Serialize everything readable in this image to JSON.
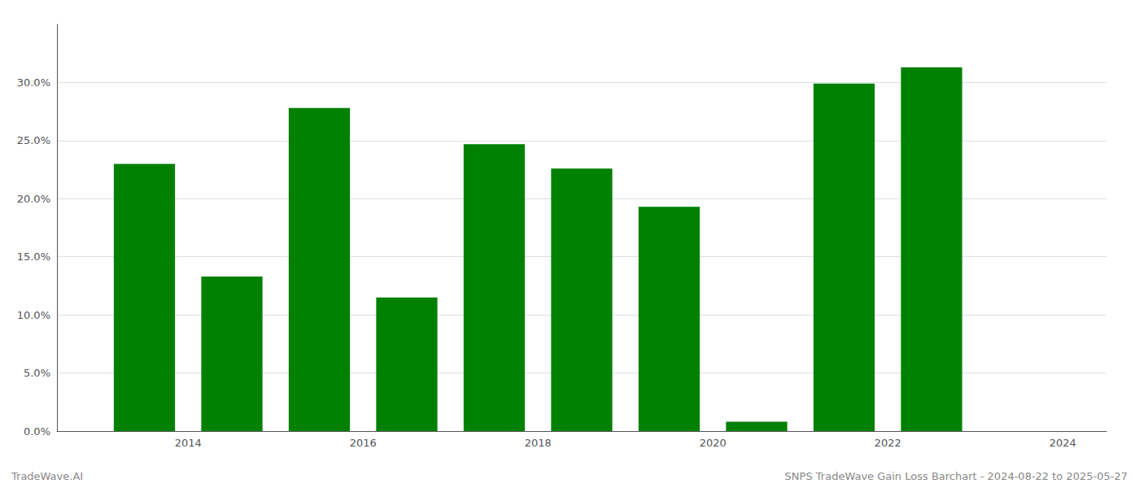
{
  "chart_data": {
    "type": "bar",
    "x": [
      2013.5,
      2014.5,
      2015.5,
      2016.5,
      2017.5,
      2018.5,
      2019.5,
      2020.5,
      2021.5,
      2022.5
    ],
    "values": [
      0.23,
      0.133,
      0.278,
      0.115,
      0.247,
      0.226,
      0.193,
      0.008,
      0.299,
      0.313
    ],
    "color": "#008000",
    "xlim": [
      2012.5,
      2024.5
    ],
    "xticks": [
      2014,
      2016,
      2018,
      2020,
      2022,
      2024
    ],
    "ylim": [
      0,
      0.35
    ],
    "yticks": [
      {
        "value": 0.0,
        "label": "0.0%"
      },
      {
        "value": 0.05,
        "label": "5.0%"
      },
      {
        "value": 0.1,
        "label": "10.0%"
      },
      {
        "value": 0.15,
        "label": "15.0%"
      },
      {
        "value": 0.2,
        "label": "20.0%"
      },
      {
        "value": 0.25,
        "label": "25.0%"
      },
      {
        "value": 0.3,
        "label": "30.0%"
      }
    ],
    "grid": true,
    "annotations": [
      "TradeWave.AI",
      "SNPS TradeWave Gain Loss Barchart - 2024-08-22 to 2025-05-27"
    ]
  }
}
